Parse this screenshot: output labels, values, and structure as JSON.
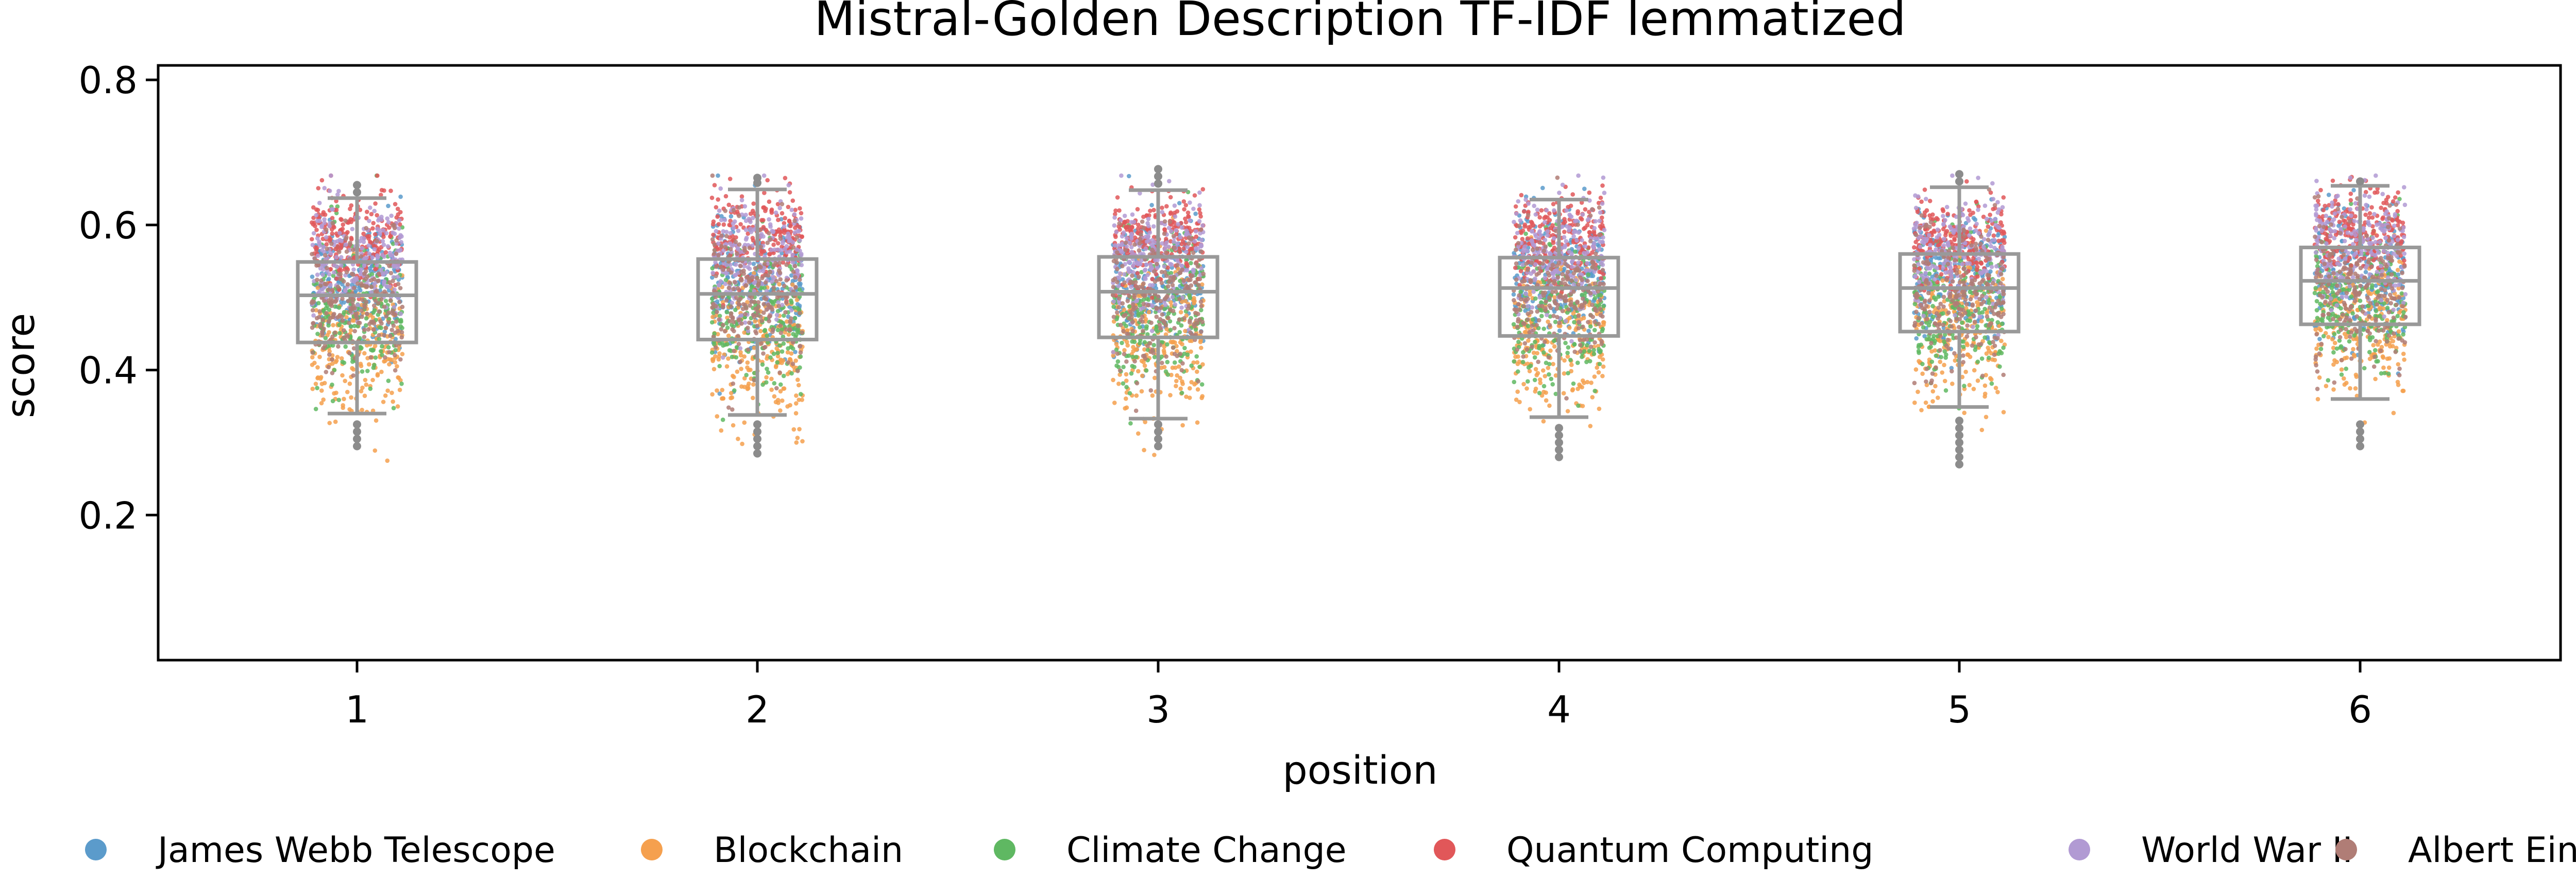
{
  "chart_data": {
    "type": "scatter",
    "subtype": "box-with-jittered-strip",
    "title": "Mistral-Golden Description TF-IDF lemmatized",
    "xlabel": "position",
    "ylabel": "score",
    "categories": [
      "1",
      "2",
      "3",
      "4",
      "5",
      "6"
    ],
    "ylim": [
      0.0,
      0.82
    ],
    "yticks": [
      0.2,
      0.4,
      0.6,
      0.8
    ],
    "ytick_labels": [
      "0.2",
      "0.4",
      "0.6",
      "0.8"
    ],
    "grid": false,
    "legend_position": "bottom",
    "box_color": "#999999",
    "boxes": [
      {
        "position": "1",
        "whisker_low": 0.34,
        "q1": 0.438,
        "median": 0.503,
        "q3": 0.549,
        "whisker_high": 0.637,
        "outliers": [
          0.295,
          0.305,
          0.315,
          0.325,
          0.645,
          0.655
        ]
      },
      {
        "position": "2",
        "whisker_low": 0.338,
        "q1": 0.442,
        "median": 0.505,
        "q3": 0.553,
        "whisker_high": 0.649,
        "outliers": [
          0.285,
          0.295,
          0.305,
          0.315,
          0.325,
          0.658,
          0.665
        ]
      },
      {
        "position": "3",
        "whisker_low": 0.333,
        "q1": 0.445,
        "median": 0.508,
        "q3": 0.556,
        "whisker_high": 0.648,
        "outliers": [
          0.295,
          0.305,
          0.315,
          0.325,
          0.657,
          0.667,
          0.677
        ]
      },
      {
        "position": "4",
        "whisker_low": 0.335,
        "q1": 0.447,
        "median": 0.513,
        "q3": 0.555,
        "whisker_high": 0.635,
        "outliers": [
          0.28,
          0.29,
          0.3,
          0.31,
          0.32
        ]
      },
      {
        "position": "5",
        "whisker_low": 0.349,
        "q1": 0.453,
        "median": 0.513,
        "q3": 0.56,
        "whisker_high": 0.652,
        "outliers": [
          0.27,
          0.28,
          0.29,
          0.3,
          0.31,
          0.32,
          0.33,
          0.66,
          0.67
        ]
      },
      {
        "position": "6",
        "whisker_low": 0.36,
        "q1": 0.463,
        "median": 0.523,
        "q3": 0.569,
        "whisker_high": 0.654,
        "outliers": [
          0.295,
          0.305,
          0.315,
          0.325,
          0.66
        ]
      }
    ],
    "series": [
      {
        "name": "James Webb Telescope",
        "color": "#5b9bcb",
        "center": [
          0.52,
          0.52,
          0.52,
          0.53,
          0.53,
          0.53
        ],
        "spread": 0.045
      },
      {
        "name": "Blockchain",
        "color": "#f5a04e",
        "center": [
          0.43,
          0.43,
          0.44,
          0.44,
          0.45,
          0.46
        ],
        "spread": 0.05
      },
      {
        "name": "Climate Change",
        "color": "#5fb862",
        "center": [
          0.48,
          0.48,
          0.48,
          0.48,
          0.49,
          0.5
        ],
        "spread": 0.05
      },
      {
        "name": "Quantum Computing",
        "color": "#e15759",
        "center": [
          0.58,
          0.58,
          0.58,
          0.58,
          0.58,
          0.59
        ],
        "spread": 0.03
      },
      {
        "name": "World War II",
        "color": "#b19ad3",
        "center": [
          0.55,
          0.55,
          0.56,
          0.56,
          0.56,
          0.57
        ],
        "spread": 0.04
      },
      {
        "name": "Albert Einstein",
        "color": "#b07d76",
        "center": [
          0.49,
          0.5,
          0.5,
          0.5,
          0.5,
          0.51
        ],
        "spread": 0.05
      }
    ],
    "points_per_series_per_position": 220
  }
}
